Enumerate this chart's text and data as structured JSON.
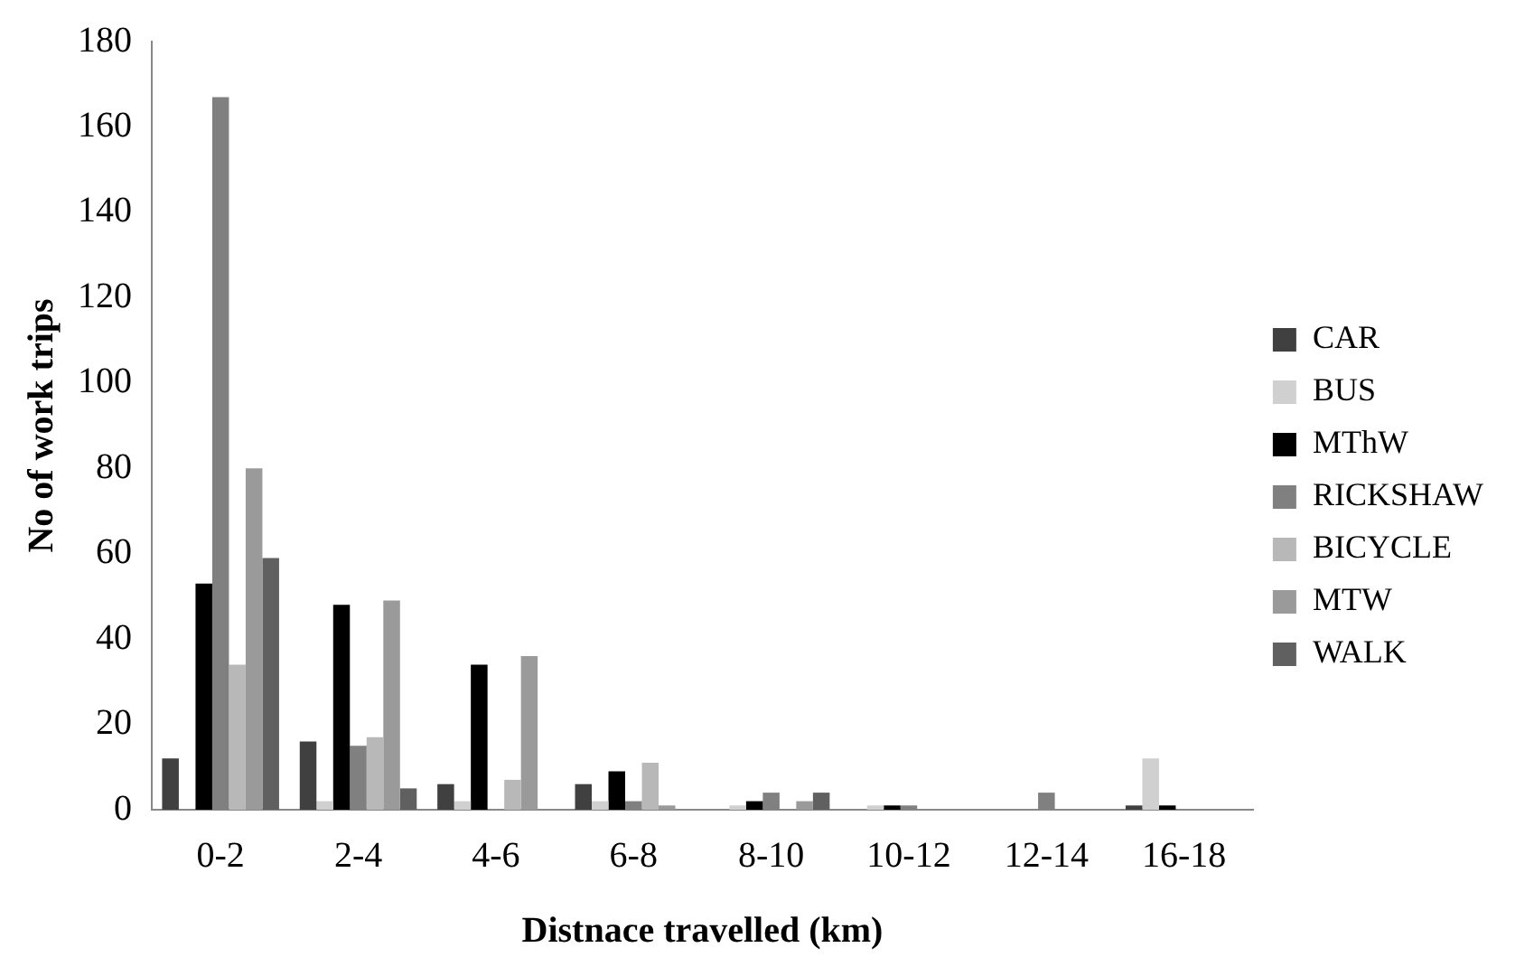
{
  "chart_data": {
    "type": "bar",
    "xlabel": "Distnace travelled (km)",
    "ylabel": "No of work trips",
    "categories": [
      "0-2",
      "2-4",
      "4-6",
      "6-8",
      "8-10",
      "10-12",
      "12-14",
      "16-18"
    ],
    "series": [
      {
        "name": "CAR",
        "color": "#404040",
        "values": [
          12,
          16,
          6,
          6,
          0,
          0,
          0,
          1
        ]
      },
      {
        "name": "BUS",
        "color": "#d0d0d0",
        "values": [
          0,
          2,
          2,
          2,
          1,
          1,
          0,
          12
        ]
      },
      {
        "name": "MThW",
        "color": "#000000",
        "values": [
          53,
          48,
          34,
          9,
          2,
          1,
          0,
          1
        ]
      },
      {
        "name": "RICKSHAW",
        "color": "#808080",
        "values": [
          167,
          15,
          0,
          2,
          4,
          1,
          4,
          0
        ]
      },
      {
        "name": "BICYCLE",
        "color": "#b8b8b8",
        "values": [
          34,
          17,
          7,
          11,
          0,
          0,
          0,
          0
        ]
      },
      {
        "name": "MTW",
        "color": "#9a9a9a",
        "values": [
          80,
          49,
          36,
          1,
          2,
          0,
          0,
          0
        ]
      },
      {
        "name": "WALK",
        "color": "#606060",
        "values": [
          59,
          5,
          0,
          0,
          4,
          0,
          0,
          0
        ]
      }
    ],
    "ylim": [
      0,
      180
    ],
    "yticks": [
      0,
      20,
      40,
      60,
      80,
      100,
      120,
      140,
      160,
      180
    ],
    "grid": false,
    "legend": "right"
  }
}
